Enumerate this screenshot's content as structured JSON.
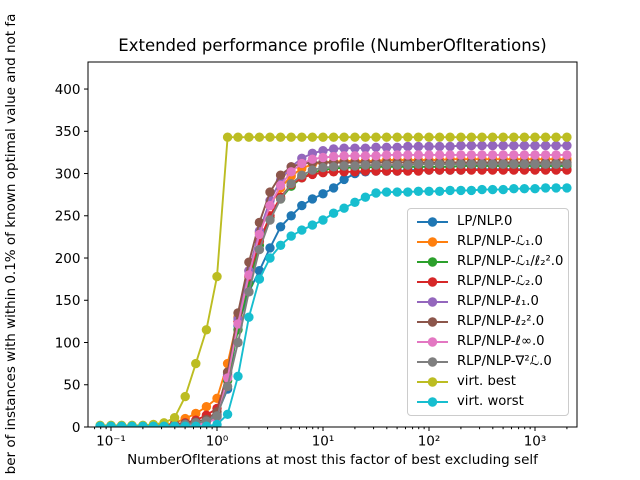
{
  "figure": {
    "title": "Extended performance profile (NumberOfIterations)",
    "xlabel": "NumberOfIterations at most this factor of best excluding self",
    "ylabel": "ber of instances with within 0.1% of known optimal value and not fa"
  },
  "chart_data": {
    "type": "line",
    "title": "Extended performance profile (NumberOfIterations)",
    "xlabel": "NumberOfIterations at most this factor of best excluding self",
    "ylabel": "ber of instances with within 0.1% of known optimal value and not fa",
    "x_scale": "log",
    "grid": false,
    "legend_position": "inside right, vertically centered-low",
    "xlim": [
      0.0607,
      2490
    ],
    "ylim": [
      0,
      432
    ],
    "y_ticks": [
      0,
      50,
      100,
      150,
      200,
      250,
      300,
      350,
      400
    ],
    "x_ticks": [
      {
        "value": 0.1,
        "label": "10⁻¹"
      },
      {
        "value": 1,
        "label": "10⁰"
      },
      {
        "value": 10,
        "label": "10¹"
      },
      {
        "value": 100,
        "label": "10²"
      },
      {
        "value": 1000,
        "label": "10³"
      }
    ],
    "marker": "o",
    "x": [
      0.079,
      0.1,
      0.126,
      0.158,
      0.2,
      0.251,
      0.316,
      0.398,
      0.501,
      0.631,
      0.794,
      1,
      1.26,
      1.58,
      2,
      2.51,
      3.16,
      3.98,
      5.01,
      6.31,
      7.94,
      10,
      12.6,
      15.8,
      20,
      25.1,
      31.6,
      39.8,
      50.1,
      63.1,
      79.4,
      100,
      126,
      158,
      200,
      251,
      316,
      398,
      501,
      631,
      794,
      1000,
      1260,
      1580,
      2000
    ],
    "series": [
      {
        "name": "LP/NLP.0",
        "color": "#1f77b4",
        "values": [
          1,
          1,
          1,
          1,
          1,
          1,
          2,
          2,
          3,
          4,
          6,
          15,
          45,
          120,
          160,
          185,
          212,
          237,
          250,
          262,
          270,
          276,
          283,
          293,
          300,
          302,
          303,
          303,
          303,
          304,
          304,
          304,
          304,
          304,
          304,
          305,
          305,
          305,
          305,
          305,
          305,
          305,
          305,
          305,
          305
        ]
      },
      {
        "name": "RLP/NLP-ℒ₁.0",
        "color": "#ff7f0e",
        "values": [
          0,
          0,
          0,
          1,
          1,
          1,
          2,
          5,
          10,
          16,
          24,
          34,
          75,
          130,
          185,
          230,
          262,
          283,
          297,
          306,
          311,
          313,
          314,
          315,
          315,
          315,
          315,
          316,
          316,
          316,
          316,
          316,
          316,
          317,
          317,
          317,
          317,
          317,
          317,
          317,
          317,
          317,
          317,
          317,
          317
        ]
      },
      {
        "name": "RLP/NLP-ℒ₁/ℓ₂².0",
        "color": "#2ca02c",
        "values": [
          0,
          0,
          0,
          0,
          0,
          1,
          1,
          1,
          2,
          4,
          7,
          12,
          55,
          115,
          170,
          215,
          248,
          270,
          285,
          295,
          301,
          304,
          306,
          307,
          307,
          307,
          308,
          308,
          308,
          308,
          308,
          308,
          308,
          308,
          309,
          309,
          309,
          309,
          309,
          309,
          309,
          309,
          309,
          309,
          309
        ]
      },
      {
        "name": "RLP/NLP-ℒ₂.0",
        "color": "#d62728",
        "values": [
          0,
          0,
          0,
          1,
          1,
          1,
          2,
          3,
          5,
          8,
          14,
          22,
          60,
          125,
          178,
          220,
          250,
          272,
          287,
          295,
          299,
          301,
          302,
          302,
          302,
          303,
          303,
          303,
          303,
          303,
          303,
          304,
          304,
          304,
          304,
          304,
          304,
          304,
          304,
          304,
          304,
          304,
          304,
          304,
          304
        ]
      },
      {
        "name": "RLP/NLP-ℓ₁.0",
        "color": "#9467bd",
        "values": [
          0,
          0,
          0,
          0,
          1,
          1,
          1,
          2,
          2,
          3,
          6,
          14,
          62,
          128,
          185,
          232,
          268,
          292,
          308,
          318,
          324,
          327,
          329,
          330,
          330,
          330,
          331,
          331,
          331,
          332,
          332,
          332,
          332,
          332,
          333,
          333,
          333,
          333,
          333,
          333,
          333,
          333,
          333,
          333,
          333
        ]
      },
      {
        "name": "RLP/NLP-ℓ₂².0",
        "color": "#8c564b",
        "values": [
          0,
          0,
          0,
          1,
          1,
          1,
          2,
          3,
          4,
          6,
          9,
          18,
          65,
          135,
          195,
          242,
          278,
          298,
          308,
          312,
          313,
          313,
          313,
          313,
          313,
          313,
          313,
          313,
          313,
          313,
          313,
          313,
          313,
          313,
          313,
          313,
          313,
          313,
          313,
          313,
          313,
          313,
          313,
          313,
          313
        ]
      },
      {
        "name": "RLP/NLP-ℓ∞.0",
        "color": "#e377c2",
        "values": [
          0,
          0,
          0,
          0,
          1,
          1,
          1,
          1,
          2,
          2,
          5,
          10,
          58,
          122,
          180,
          228,
          262,
          286,
          302,
          312,
          317,
          319,
          320,
          321,
          321,
          321,
          321,
          322,
          322,
          322,
          322,
          322,
          322,
          322,
          322,
          322,
          322,
          322,
          322,
          322,
          322,
          322,
          322,
          322,
          322
        ]
      },
      {
        "name": "RLP/NLP-∇²ℒ.0",
        "color": "#7f7f7f",
        "values": [
          0,
          0,
          0,
          1,
          1,
          1,
          2,
          2,
          3,
          5,
          7,
          13,
          48,
          100,
          160,
          210,
          245,
          270,
          288,
          298,
          304,
          307,
          308,
          309,
          309,
          310,
          310,
          310,
          310,
          310,
          311,
          311,
          311,
          311,
          311,
          311,
          311,
          311,
          311,
          311,
          311,
          311,
          311,
          311,
          311
        ]
      },
      {
        "name": "virt. best",
        "color": "#bcbd22",
        "values": [
          2,
          2,
          2,
          2,
          2,
          3,
          5,
          11,
          36,
          75,
          115,
          178,
          343,
          343,
          343,
          343,
          343,
          343,
          343,
          343,
          343,
          343,
          343,
          343,
          343,
          343,
          343,
          343,
          343,
          343,
          343,
          343,
          343,
          343,
          343,
          343,
          343,
          343,
          343,
          343,
          343,
          343,
          343,
          343,
          343
        ]
      },
      {
        "name": "virt. worst",
        "color": "#17becf",
        "values": [
          1,
          1,
          1,
          1,
          1,
          1,
          1,
          1,
          1,
          1,
          1,
          3,
          15,
          60,
          130,
          175,
          200,
          215,
          226,
          233,
          239,
          245,
          253,
          259,
          266,
          272,
          277,
          278,
          278,
          278,
          279,
          279,
          279,
          280,
          280,
          280,
          281,
          281,
          281,
          282,
          282,
          282,
          283,
          283,
          283
        ]
      }
    ]
  }
}
